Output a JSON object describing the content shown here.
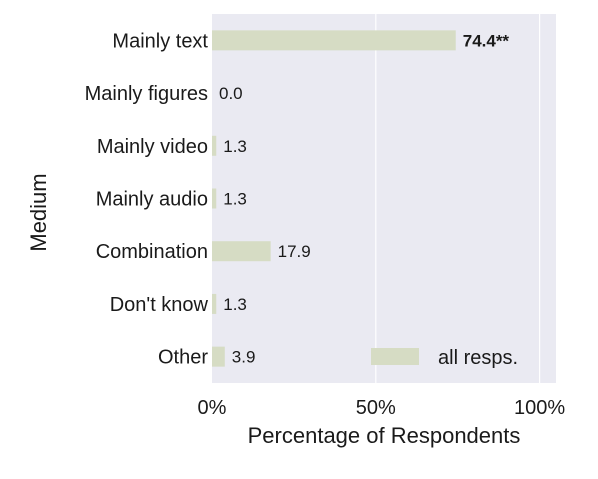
{
  "chart_data": {
    "type": "bar",
    "orientation": "horizontal",
    "categories": [
      "Mainly text",
      "Mainly figures",
      "Mainly video",
      "Mainly audio",
      "Combination",
      "Don't know",
      "Other"
    ],
    "series": [
      {
        "name": "all resps.",
        "values": [
          74.4,
          0.0,
          1.3,
          1.3,
          17.9,
          1.3,
          3.9
        ],
        "value_labels": [
          "74.4**",
          "0.0",
          "1.3",
          "1.3",
          "17.9",
          "1.3",
          "3.9"
        ],
        "bold_labels": [
          true,
          false,
          false,
          false,
          false,
          false,
          false
        ],
        "color": "#d6dcc4"
      }
    ],
    "xlabel": "Percentage of Respondents",
    "ylabel": "Medium",
    "xlim": [
      0,
      105
    ],
    "xticks": [
      0,
      50,
      100
    ],
    "xtick_labels": [
      "0%",
      "50%",
      "100%"
    ],
    "grid": true,
    "legend_position": "bottom-right",
    "background_color": "#eaeaf2",
    "grid_color": "#ffffff"
  }
}
